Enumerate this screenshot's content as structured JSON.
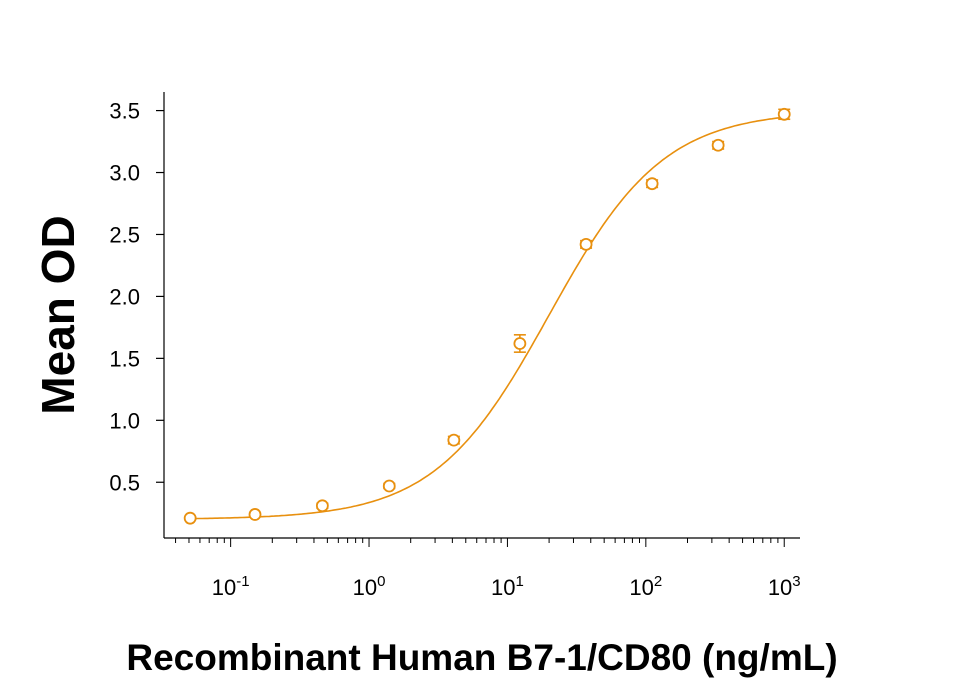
{
  "chart_data": {
    "type": "scatter",
    "xlabel": "Recombinant Human B7-1/CD80 (ng/mL)",
    "ylabel": "Mean OD",
    "x_scale": "log",
    "xlim": [
      0.033,
      1300
    ],
    "ylim": [
      0.05,
      3.65
    ],
    "y_ticks": [
      "0.5",
      "1.0",
      "1.5",
      "2.0",
      "2.5",
      "3.0",
      "3.5"
    ],
    "x_ticks": [
      {
        "base": "10",
        "exp": "-1"
      },
      {
        "base": "10",
        "exp": "0"
      },
      {
        "base": "10",
        "exp": "1"
      },
      {
        "base": "10",
        "exp": "2"
      },
      {
        "base": "10",
        "exp": "3"
      }
    ],
    "grid": false,
    "series": [
      {
        "color": "#E8900F",
        "x": [
          0.051,
          0.15,
          0.46,
          1.4,
          4.1,
          12.3,
          37,
          111,
          333,
          1000
        ],
        "y": [
          0.21,
          0.24,
          0.31,
          0.47,
          0.84,
          1.62,
          2.42,
          2.91,
          3.22,
          3.47
        ],
        "err": [
          0.01,
          0.01,
          0.02,
          0.02,
          0.03,
          0.07,
          0.03,
          0.03,
          0.03,
          0.04
        ]
      }
    ],
    "fit_curve": {
      "bottom": 0.2,
      "top": 3.5,
      "ec50": 20,
      "hill": 1.05
    }
  }
}
